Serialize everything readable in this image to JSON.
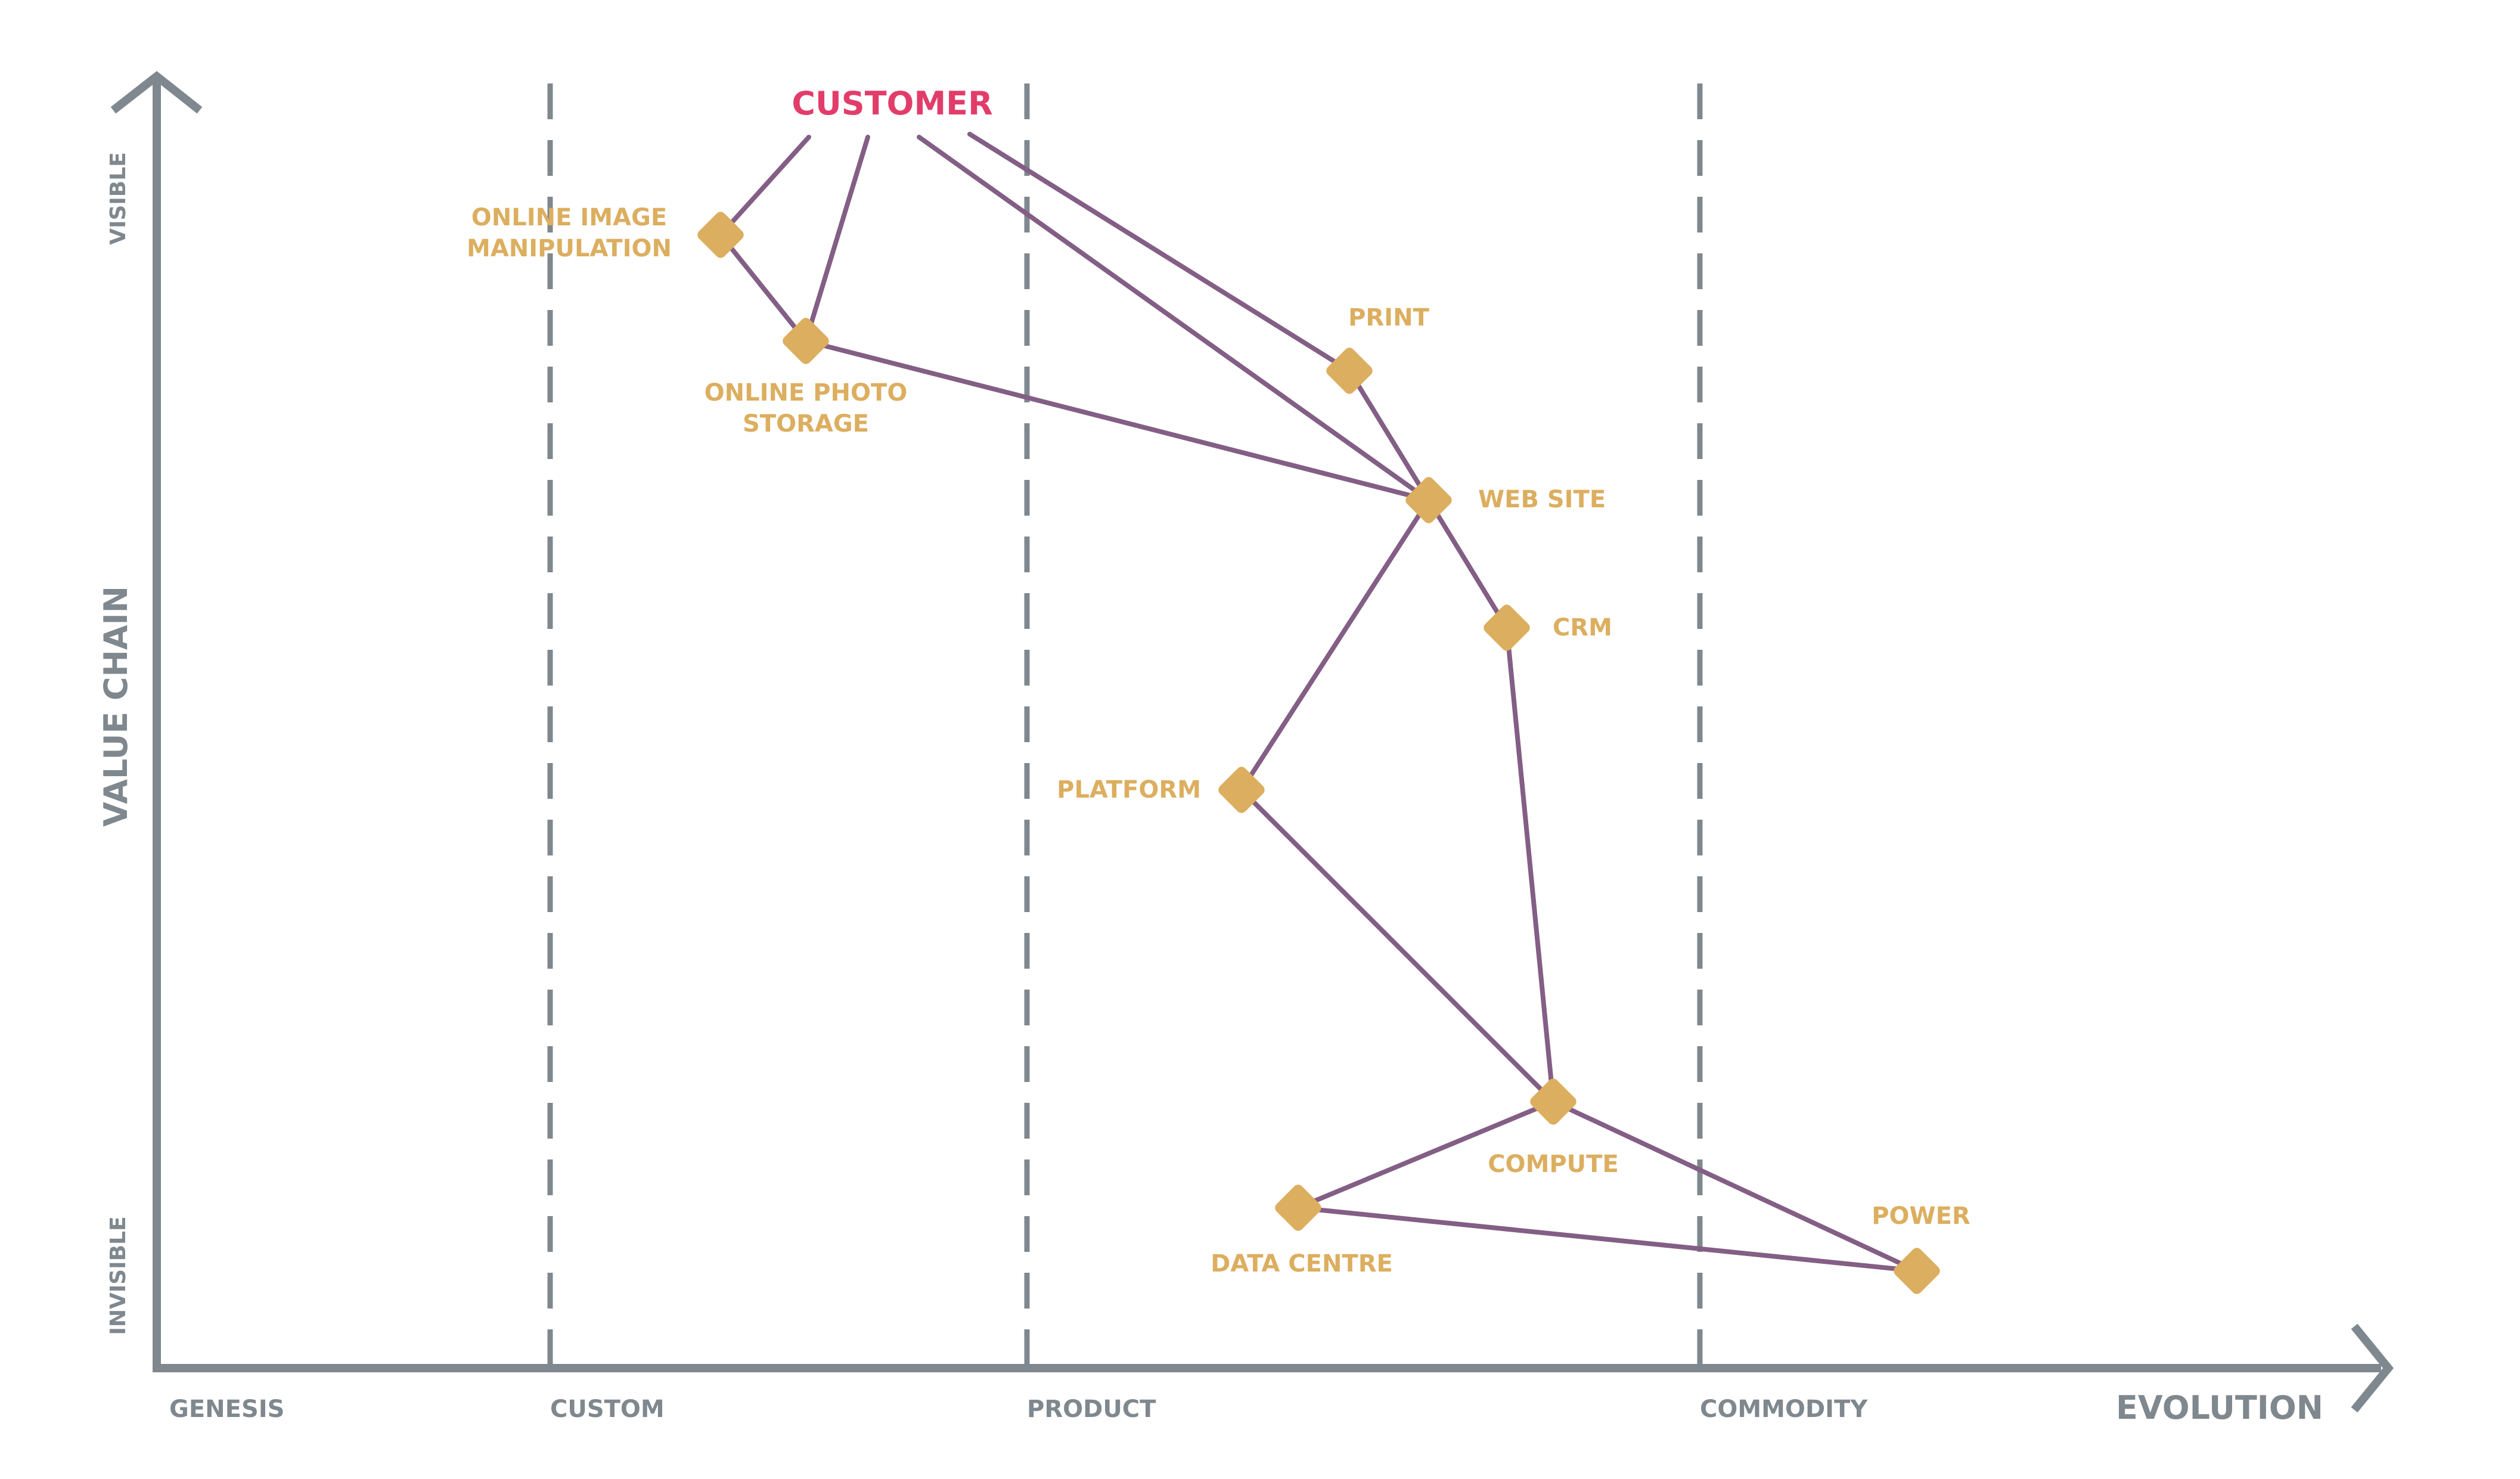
{
  "axes": {
    "y_title": "VALUE CHAIN",
    "y_top": "VISIBLE",
    "y_bottom": "INVISIBLE",
    "x_title": "EVOLUTION"
  },
  "stages": [
    "GENESIS",
    "CUSTOM",
    "PRODUCT",
    "COMMODITY"
  ],
  "anchor": {
    "id": "customer",
    "label": "CUSTOMER"
  },
  "components": [
    {
      "id": "online_image",
      "label_lines": [
        "ONLINE IMAGE",
        "MANIPULATION"
      ]
    },
    {
      "id": "online_photo",
      "label_lines": [
        "ONLINE PHOTO",
        "STORAGE"
      ]
    },
    {
      "id": "print",
      "label_lines": [
        "PRINT"
      ]
    },
    {
      "id": "web_site",
      "label_lines": [
        "WEB SITE"
      ]
    },
    {
      "id": "crm",
      "label_lines": [
        "CRM"
      ]
    },
    {
      "id": "platform",
      "label_lines": [
        "PLATFORM"
      ]
    },
    {
      "id": "compute",
      "label_lines": [
        "COMPUTE"
      ]
    },
    {
      "id": "data_centre",
      "label_lines": [
        "DATA CENTRE"
      ]
    },
    {
      "id": "power",
      "label_lines": [
        "POWER"
      ]
    }
  ],
  "links": [
    [
      "customer",
      "online_image"
    ],
    [
      "customer",
      "online_photo"
    ],
    [
      "customer",
      "web_site"
    ],
    [
      "customer",
      "print"
    ],
    [
      "online_image",
      "online_photo"
    ],
    [
      "online_photo",
      "web_site"
    ],
    [
      "print",
      "web_site"
    ],
    [
      "web_site",
      "crm"
    ],
    [
      "web_site",
      "platform"
    ],
    [
      "crm",
      "compute"
    ],
    [
      "platform",
      "compute"
    ],
    [
      "compute",
      "data_centre"
    ],
    [
      "compute",
      "power"
    ],
    [
      "data_centre",
      "power"
    ]
  ],
  "colors": {
    "axis": "#7f888e",
    "link": "#835e85",
    "node": "#dcae5f",
    "anchor": "#e23d6a"
  }
}
